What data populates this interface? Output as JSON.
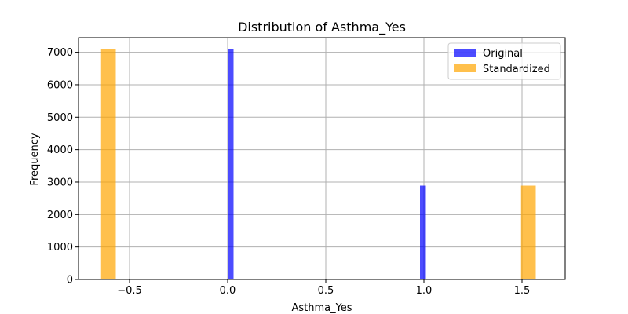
{
  "chart_data": {
    "type": "bar",
    "title": "Distribution of Asthma_Yes",
    "xlabel": "Asthma_Yes",
    "ylabel": "Frequency",
    "xlim": [
      -0.76,
      1.72
    ],
    "ylim": [
      0,
      7450
    ],
    "xticks": [
      -0.5,
      0.0,
      0.5,
      1.0,
      1.5
    ],
    "xtick_labels": [
      "−0.5",
      "0.0",
      "0.5",
      "1.0",
      "1.5"
    ],
    "yticks": [
      0,
      1000,
      2000,
      3000,
      4000,
      5000,
      6000,
      7000
    ],
    "ytick_labels": [
      "0",
      "1000",
      "2000",
      "3000",
      "4000",
      "5000",
      "6000",
      "7000"
    ],
    "grid": true,
    "legend_position": "top-right",
    "series": [
      {
        "name": "Original",
        "color": "#0000ff",
        "opacity": 0.7,
        "bins": [
          {
            "x0": 0.0,
            "x1": 0.03,
            "value": 7100
          },
          {
            "x0": 0.98,
            "x1": 1.01,
            "value": 2890
          }
        ]
      },
      {
        "name": "Standardized",
        "color": "#ffa500",
        "opacity": 0.7,
        "bins": [
          {
            "x0": -0.645,
            "x1": -0.57,
            "value": 7100
          },
          {
            "x0": 1.495,
            "x1": 1.57,
            "value": 2890
          }
        ]
      }
    ]
  }
}
